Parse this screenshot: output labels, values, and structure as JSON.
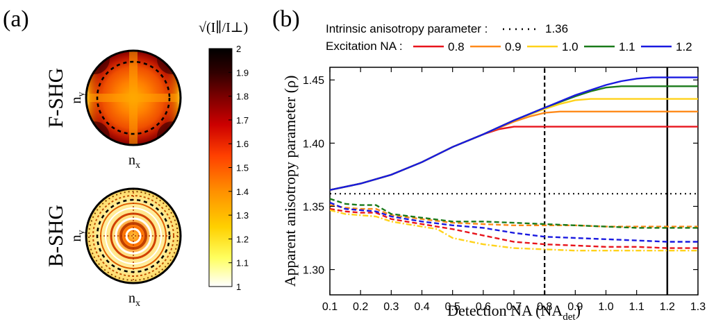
{
  "panels": {
    "a_label": "(a)",
    "b_label": "(b)"
  },
  "panel_a": {
    "colorbar": {
      "title": "√(I∥/I⊥)",
      "min": 1,
      "max": 2,
      "ticks": [
        "1",
        "1.1",
        "1.2",
        "1.3",
        "1.4",
        "1.5",
        "1.6",
        "1.7",
        "1.8",
        "1.9",
        "2"
      ],
      "colors": [
        "#ffffff",
        "#ffff40",
        "#ffd000",
        "#ff9000",
        "#ff4000",
        "#d00000",
        "#800000",
        "#300000",
        "#000000"
      ]
    },
    "maps": [
      {
        "row_label": "F-SHG",
        "x_label": "n",
        "x_sub": "x",
        "y_label": "n",
        "y_sub": "y"
      },
      {
        "row_label": "B-SHG",
        "x_label": "n",
        "x_sub": "x",
        "y_label": "n",
        "y_sub": "y"
      }
    ]
  },
  "chart_data": {
    "type": "line",
    "xlabel": "Detection NA (NA",
    "xlabel_sub": "det",
    "xlabel_close": ")",
    "ylabel": "Apparent anisotropy parameter (ρ)",
    "xlim": [
      0.1,
      1.3
    ],
    "ylim": [
      1.28,
      1.46
    ],
    "xticks": [
      "0.1",
      "0.2",
      "0.3",
      "0.4",
      "0.5",
      "0.6",
      "0.7",
      "0.8",
      "0.9",
      "1.0",
      "1.1",
      "1.2",
      "1.3"
    ],
    "yticks": [
      "1.30",
      "1.35",
      "1.40",
      "1.45"
    ],
    "legend": {
      "intrinsic_label": "Intrinsic anisotropy parameter :",
      "intrinsic_value": "1.36",
      "excitation_label": "Excitation NA :",
      "entries": [
        {
          "name": "0.8",
          "color": "#e8141c"
        },
        {
          "name": "0.9",
          "color": "#ff8a1a"
        },
        {
          "name": "1.0",
          "color": "#ffd21a"
        },
        {
          "name": "1.1",
          "color": "#1a7a1a"
        },
        {
          "name": "1.2",
          "color": "#1a1ae0"
        }
      ]
    },
    "reference_line": {
      "y": 1.36,
      "style": "dotted"
    },
    "vertical_lines": [
      {
        "x": 0.8,
        "style": "dashed"
      },
      {
        "x": 1.2,
        "style": "solid"
      }
    ],
    "forward_series": [
      {
        "name": "0.8",
        "color": "#e8141c",
        "x": [
          0.1,
          0.2,
          0.3,
          0.4,
          0.5,
          0.6,
          0.65,
          0.7,
          0.75,
          0.8,
          1.3
        ],
        "y": [
          1.363,
          1.368,
          1.375,
          1.385,
          1.397,
          1.407,
          1.411,
          1.413,
          1.413,
          1.413,
          1.413
        ]
      },
      {
        "name": "0.9",
        "color": "#ff8a1a",
        "x": [
          0.1,
          0.2,
          0.3,
          0.4,
          0.5,
          0.6,
          0.7,
          0.75,
          0.8,
          0.85,
          0.9,
          1.3
        ],
        "y": [
          1.363,
          1.368,
          1.375,
          1.385,
          1.397,
          1.407,
          1.417,
          1.421,
          1.424,
          1.425,
          1.425,
          1.425
        ]
      },
      {
        "name": "1.0",
        "color": "#ffd21a",
        "x": [
          0.1,
          0.2,
          0.3,
          0.4,
          0.5,
          0.6,
          0.7,
          0.8,
          0.85,
          0.9,
          0.95,
          1.0,
          1.3
        ],
        "y": [
          1.363,
          1.368,
          1.375,
          1.385,
          1.397,
          1.407,
          1.418,
          1.427,
          1.431,
          1.434,
          1.435,
          1.435,
          1.435
        ]
      },
      {
        "name": "1.1",
        "color": "#1a7a1a",
        "x": [
          0.1,
          0.2,
          0.3,
          0.4,
          0.5,
          0.6,
          0.7,
          0.8,
          0.9,
          0.95,
          1.0,
          1.05,
          1.1,
          1.3
        ],
        "y": [
          1.363,
          1.368,
          1.375,
          1.385,
          1.397,
          1.407,
          1.418,
          1.428,
          1.437,
          1.441,
          1.444,
          1.445,
          1.445,
          1.445
        ]
      },
      {
        "name": "1.2",
        "color": "#1a1ae0",
        "x": [
          0.1,
          0.2,
          0.3,
          0.4,
          0.5,
          0.6,
          0.7,
          0.8,
          0.9,
          1.0,
          1.05,
          1.1,
          1.15,
          1.2,
          1.3
        ],
        "y": [
          1.363,
          1.368,
          1.375,
          1.385,
          1.397,
          1.407,
          1.418,
          1.428,
          1.438,
          1.446,
          1.449,
          1.451,
          1.452,
          1.452,
          1.452
        ]
      }
    ],
    "backward_series": [
      {
        "name": "0.8",
        "color": "#e8141c",
        "x": [
          0.1,
          0.15,
          0.2,
          0.25,
          0.3,
          0.4,
          0.5,
          0.6,
          0.7,
          0.8,
          0.9,
          1.0,
          1.1,
          1.2,
          1.3
        ],
        "y": [
          1.348,
          1.346,
          1.345,
          1.345,
          1.34,
          1.336,
          1.332,
          1.327,
          1.322,
          1.32,
          1.319,
          1.318,
          1.318,
          1.317,
          1.317
        ]
      },
      {
        "name": "0.9",
        "color": "#ff8a1a",
        "x": [
          0.1,
          0.15,
          0.2,
          0.25,
          0.3,
          0.4,
          0.5,
          0.6,
          0.7,
          0.8,
          0.9,
          1.0,
          1.1,
          1.2,
          1.3
        ],
        "y": [
          1.351,
          1.349,
          1.348,
          1.348,
          1.343,
          1.34,
          1.337,
          1.336,
          1.335,
          1.335,
          1.335,
          1.334,
          1.334,
          1.334,
          1.334
        ]
      },
      {
        "name": "1.0",
        "color": "#ffd21a",
        "x": [
          0.1,
          0.15,
          0.2,
          0.25,
          0.3,
          0.4,
          0.45,
          0.5,
          0.6,
          0.7,
          0.8,
          0.9,
          1.0,
          1.1,
          1.2,
          1.3
        ],
        "y": [
          1.347,
          1.344,
          1.343,
          1.342,
          1.338,
          1.334,
          1.332,
          1.325,
          1.32,
          1.317,
          1.316,
          1.315,
          1.315,
          1.315,
          1.315,
          1.315
        ]
      },
      {
        "name": "1.1",
        "color": "#1a7a1a",
        "x": [
          0.1,
          0.15,
          0.2,
          0.25,
          0.3,
          0.4,
          0.5,
          0.6,
          0.7,
          0.8,
          0.9,
          1.0,
          1.1,
          1.2,
          1.3
        ],
        "y": [
          1.356,
          1.352,
          1.351,
          1.351,
          1.344,
          1.341,
          1.338,
          1.338,
          1.337,
          1.336,
          1.335,
          1.334,
          1.333,
          1.333,
          1.333
        ]
      },
      {
        "name": "1.2",
        "color": "#1a1ae0",
        "x": [
          0.1,
          0.15,
          0.2,
          0.25,
          0.3,
          0.4,
          0.5,
          0.6,
          0.7,
          0.8,
          0.9,
          1.0,
          1.1,
          1.2,
          1.3
        ],
        "y": [
          1.353,
          1.348,
          1.347,
          1.346,
          1.342,
          1.338,
          1.335,
          1.333,
          1.329,
          1.326,
          1.325,
          1.324,
          1.323,
          1.322,
          1.322
        ]
      }
    ]
  }
}
